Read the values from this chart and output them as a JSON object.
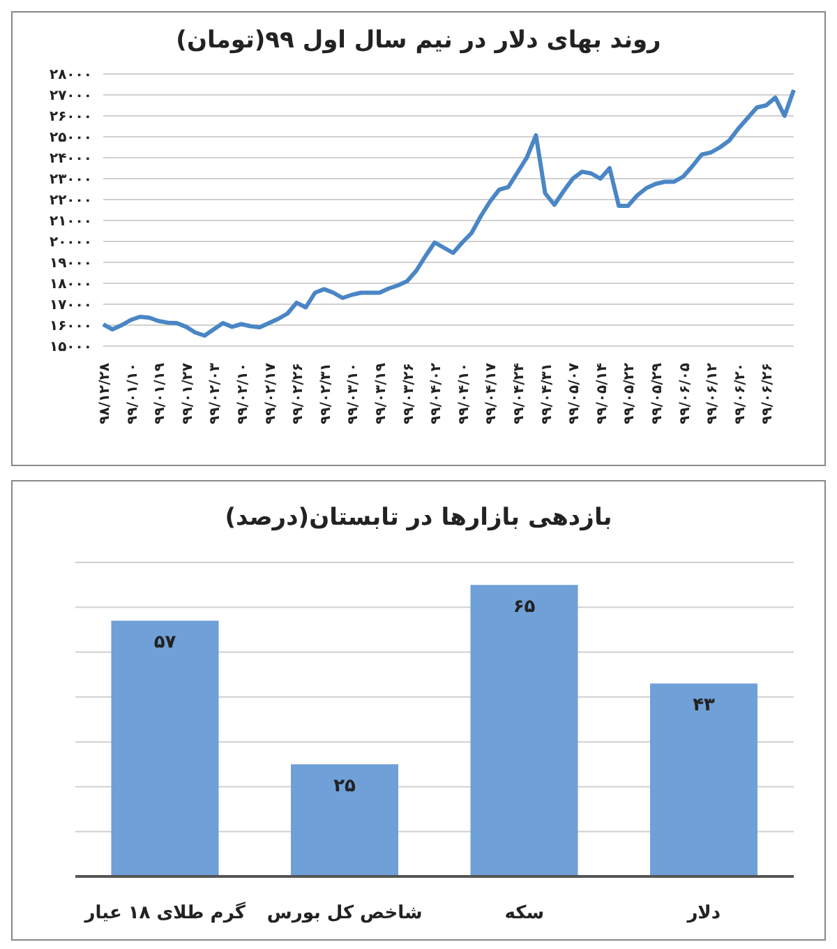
{
  "chart_data": [
    {
      "type": "line",
      "title": "روند بهای دلار در نیم سال اول ۹۹(تومان)",
      "categories": [
        "۹۸/۱۲/۲۸",
        null,
        null,
        "۹۹/۰۱/۱۰",
        null,
        null,
        "۹۹/۰۱/۱۹",
        null,
        null,
        "۹۹/۰۱/۲۷",
        null,
        null,
        "۹۹/۰۲/۰۳",
        null,
        null,
        "۹۹/۰۲/۱۰",
        null,
        null,
        "۹۹/۰۲/۱۷",
        null,
        null,
        "۹۹/۰۲/۲۶",
        null,
        null,
        "۹۹/۰۲/۳۱",
        null,
        null,
        "۹۹/۰۳/۱۰",
        null,
        null,
        "۹۹/۰۳/۱۹",
        null,
        null,
        "۹۹/۰۳/۲۶",
        null,
        null,
        "۹۹/۰۴/۰۲",
        null,
        null,
        "۹۹/۰۴/۱۰",
        null,
        null,
        "۹۹/۰۴/۱۷",
        null,
        null,
        "۹۹/۰۴/۲۴",
        null,
        null,
        "۹۹/۰۴/۳۱",
        null,
        null,
        "۹۹/۰۵/۰۷",
        null,
        null,
        "۹۹/۰۵/۱۴",
        null,
        null,
        "۹۹/۰۵/۲۲",
        null,
        null,
        "۹۹/۰۵/۲۹",
        null,
        null,
        "۹۹/۰۶/۰۵",
        null,
        null,
        "۹۹/۰۶/۱۲",
        null,
        null,
        "۹۹/۰۶/۲۰",
        null,
        null,
        "۹۹/۰۶/۲۶",
        null,
        null,
        null
      ],
      "series": [
        {
          "color": "#4a86c5",
          "values": [
            16040,
            15800,
            16000,
            16250,
            16400,
            16360,
            16200,
            16120,
            16100,
            15920,
            15650,
            15500,
            15800,
            16100,
            15920,
            16050,
            15950,
            15900,
            16100,
            16300,
            16550,
            17070,
            16850,
            17550,
            17720,
            17550,
            17300,
            17450,
            17550,
            17550,
            17550,
            17750,
            17900,
            18100,
            18600,
            19300,
            19950,
            19700,
            19450,
            19950,
            20400,
            21200,
            21900,
            22470,
            22600,
            23300,
            24000,
            25070,
            22300,
            21750,
            22400,
            23000,
            23330,
            23250,
            23000,
            23500,
            21700,
            21700,
            22200,
            22550,
            22750,
            22850,
            22850,
            23100,
            23600,
            24150,
            24250,
            24500,
            24820,
            25400,
            25900,
            26400,
            26500,
            26870,
            26000,
            27230
          ]
        }
      ],
      "ylim": [
        15000,
        28000
      ],
      "yticks": [
        {
          "value": 15000,
          "label": "۱۵۰۰۰"
        },
        {
          "value": 16000,
          "label": "۱۶۰۰۰"
        },
        {
          "value": 17000,
          "label": "۱۷۰۰۰"
        },
        {
          "value": 18000,
          "label": "۱۸۰۰۰"
        },
        {
          "value": 19000,
          "label": "۱۹۰۰۰"
        },
        {
          "value": 20000,
          "label": "۲۰۰۰۰"
        },
        {
          "value": 21000,
          "label": "۲۱۰۰۰"
        },
        {
          "value": 22000,
          "label": "۲۲۰۰۰"
        },
        {
          "value": 23000,
          "label": "۲۳۰۰۰"
        },
        {
          "value": 24000,
          "label": "۲۴۰۰۰"
        },
        {
          "value": 25000,
          "label": "۲۵۰۰۰"
        },
        {
          "value": 26000,
          "label": "۲۶۰۰۰"
        },
        {
          "value": 27000,
          "label": "۲۷۰۰۰"
        },
        {
          "value": 28000,
          "label": "۲۸۰۰۰"
        }
      ],
      "grid": "y"
    },
    {
      "type": "bar",
      "title": "بازدهی بازارها در تابستان(درصد)",
      "categories": [
        "گرم طلای ۱۸ عیار",
        "شاخص کل بورس",
        "سکه",
        "دلار"
      ],
      "values": [
        57,
        25,
        65,
        43
      ],
      "color": "#6fa0d8",
      "value_labels": [
        "۵۷",
        "۲۵",
        "۶۵",
        "۴۳"
      ],
      "ylim": [
        0,
        70
      ],
      "yticks": [
        {
          "value": 0,
          "label": null
        },
        {
          "value": 10,
          "label": null
        },
        {
          "value": 20,
          "label": null
        },
        {
          "value": 30,
          "label": null
        },
        {
          "value": 40,
          "label": null
        },
        {
          "value": 50,
          "label": null
        },
        {
          "value": 60,
          "label": null
        },
        {
          "value": 70,
          "label": null
        }
      ],
      "tick_labels": "x",
      "grid": "y"
    }
  ]
}
